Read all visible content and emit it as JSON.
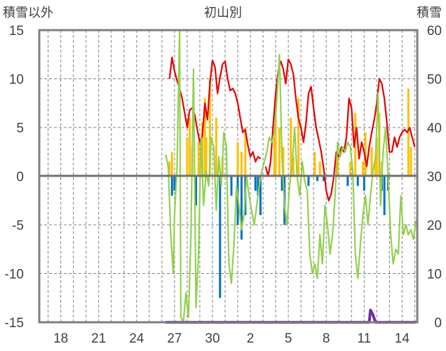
{
  "chart_data": {
    "type": "line",
    "title": "初山別",
    "ylabel_left": "積雪以外",
    "ylabel_right": "積雪",
    "x_ticks": [
      "18",
      "21",
      "24",
      "27",
      "30",
      "2",
      "5",
      "8",
      "11",
      "14"
    ],
    "y_left": {
      "min": -15,
      "max": 15,
      "ticks": [
        15,
        10,
        5,
        0,
        -5,
        -10,
        -15
      ]
    },
    "y_right": {
      "min": 0,
      "max": 60,
      "ticks": [
        60,
        50,
        40,
        30,
        20,
        10,
        0
      ]
    },
    "grid": true,
    "x_range_days": [
      16.3,
      46.2
    ],
    "tick_day_positions": [
      18,
      21,
      24,
      27,
      30,
      33,
      36,
      39,
      42,
      45
    ],
    "series": [
      {
        "role": "temperature",
        "axis": "left",
        "color": "#e60000",
        "points": [
          [
            26.6,
            10.0
          ],
          [
            26.8,
            12.2
          ],
          [
            27.0,
            10.8
          ],
          [
            27.2,
            9.8
          ],
          [
            27.4,
            9.0
          ],
          [
            27.6,
            8.0
          ],
          [
            27.8,
            6.5
          ],
          [
            28.0,
            5.0
          ],
          [
            28.2,
            6.8
          ],
          [
            28.4,
            7.0
          ],
          [
            28.6,
            6.3
          ],
          [
            28.8,
            4.8
          ],
          [
            29.0,
            3.5
          ],
          [
            29.2,
            4.2
          ],
          [
            29.4,
            7.5
          ],
          [
            29.6,
            5.8
          ],
          [
            29.8,
            9.6
          ],
          [
            30.0,
            11.9
          ],
          [
            30.2,
            11.2
          ],
          [
            30.4,
            8.5
          ],
          [
            30.6,
            10.2
          ],
          [
            30.8,
            11.5
          ],
          [
            31.0,
            11.8
          ],
          [
            31.2,
            10.0
          ],
          [
            31.4,
            8.8
          ],
          [
            31.6,
            9.0
          ],
          [
            31.8,
            8.5
          ],
          [
            32.0,
            7.5
          ],
          [
            32.2,
            6.0
          ],
          [
            32.4,
            4.5
          ],
          [
            32.6,
            4.8
          ],
          [
            32.8,
            3.2
          ],
          [
            33.0,
            2.0
          ],
          [
            33.2,
            2.5
          ],
          [
            33.4,
            1.5
          ],
          [
            33.6,
            2.0
          ],
          [
            33.8,
            1.8
          ]
        ]
      },
      {
        "role": "temperature",
        "axis": "left",
        "color": "#e60000",
        "points": [
          [
            34.2,
            1.0
          ],
          [
            34.4,
            0.0
          ],
          [
            34.6,
            1.5
          ],
          [
            34.8,
            5.2
          ],
          [
            35.0,
            8.5
          ],
          [
            35.2,
            10.8
          ],
          [
            35.4,
            11.8
          ],
          [
            35.6,
            11.0
          ],
          [
            35.8,
            9.5
          ],
          [
            36.0,
            12.0
          ],
          [
            36.2,
            11.5
          ],
          [
            36.4,
            10.5
          ],
          [
            36.6,
            8.0
          ],
          [
            36.8,
            6.0
          ],
          [
            37.0,
            5.0
          ],
          [
            37.2,
            3.5
          ],
          [
            37.4,
            5.5
          ],
          [
            37.6,
            8.5
          ],
          [
            37.8,
            9.2
          ],
          [
            38.0,
            7.0
          ],
          [
            38.2,
            5.0
          ],
          [
            38.4,
            3.8
          ],
          [
            38.6,
            2.5
          ],
          [
            38.8,
            0.8
          ],
          [
            39.0,
            -1.5
          ],
          [
            39.2,
            -2.5
          ],
          [
            39.4,
            -1.8
          ],
          [
            39.6,
            0.0
          ],
          [
            39.8,
            2.5
          ],
          [
            40.0,
            2.0
          ],
          [
            40.2,
            3.0
          ],
          [
            40.4,
            2.5
          ],
          [
            40.6,
            4.0
          ],
          [
            40.8,
            8.0
          ],
          [
            41.0,
            7.0
          ],
          [
            41.2,
            3.0
          ],
          [
            41.4,
            5.0
          ],
          [
            41.6,
            1.8
          ],
          [
            41.8,
            3.5
          ],
          [
            42.0,
            2.5
          ],
          [
            42.2,
            1.0
          ],
          [
            42.4,
            3.0
          ],
          [
            42.6,
            4.5
          ],
          [
            42.8,
            5.8
          ],
          [
            43.0,
            7.5
          ],
          [
            43.2,
            10.0
          ],
          [
            43.4,
            9.5
          ],
          [
            43.6,
            8.0
          ],
          [
            43.8,
            5.5
          ],
          [
            44.0,
            2.5
          ],
          [
            44.2,
            2.5
          ],
          [
            44.4,
            4.0
          ],
          [
            44.6,
            3.0
          ],
          [
            44.8,
            4.0
          ],
          [
            45.0,
            4.5
          ],
          [
            45.2,
            4.8
          ],
          [
            45.4,
            4.5
          ],
          [
            45.6,
            5.0
          ],
          [
            45.8,
            4.0
          ],
          [
            46.0,
            3.0
          ]
        ]
      },
      {
        "role": "wind",
        "axis": "left",
        "color": "#92d050",
        "points": [
          [
            26.3,
            2.2
          ],
          [
            26.5,
            1.0
          ],
          [
            26.7,
            -6.0
          ],
          [
            26.9,
            -10.0
          ],
          [
            27.0,
            -4.0
          ],
          [
            27.2,
            1.0
          ],
          [
            27.4,
            15.0
          ],
          [
            27.5,
            -14.5
          ],
          [
            27.7,
            -15.0
          ],
          [
            27.9,
            -12.0
          ],
          [
            28.1,
            -14.5
          ],
          [
            28.3,
            -6.0
          ],
          [
            28.5,
            11.0
          ],
          [
            28.7,
            -13.5
          ],
          [
            28.9,
            -8.0
          ],
          [
            29.1,
            4.0
          ],
          [
            29.3,
            -3.0
          ],
          [
            29.5,
            0.5
          ],
          [
            29.7,
            -1.0
          ],
          [
            29.9,
            4.0
          ],
          [
            30.1,
            3.0
          ],
          [
            30.3,
            -3.5
          ],
          [
            30.5,
            2.0
          ],
          [
            30.7,
            -1.0
          ],
          [
            30.9,
            4.5
          ],
          [
            31.1,
            3.0
          ],
          [
            31.3,
            -9.0
          ],
          [
            31.5,
            -11.0
          ],
          [
            31.7,
            -7.0
          ],
          [
            31.9,
            -1.0
          ],
          [
            32.1,
            -3.0
          ],
          [
            32.3,
            -5.5
          ],
          [
            32.5,
            -4.0
          ],
          [
            32.7,
            0.0
          ],
          [
            32.9,
            -2.0
          ],
          [
            33.1,
            -3.5
          ],
          [
            33.3,
            -5.0
          ],
          [
            33.5,
            -3.0
          ],
          [
            33.7,
            -1.0
          ],
          [
            33.9,
            0.5
          ],
          [
            34.3,
            2.5
          ],
          [
            34.5,
            4.0
          ],
          [
            34.7,
            3.5
          ],
          [
            34.9,
            4.5
          ],
          [
            35.1,
            8.0
          ],
          [
            35.3,
            12.5
          ],
          [
            35.5,
            2.0
          ],
          [
            35.7,
            -3.0
          ],
          [
            35.9,
            -5.0
          ],
          [
            36.1,
            -1.0
          ],
          [
            36.3,
            1.0
          ],
          [
            36.5,
            5.0
          ],
          [
            36.7,
            0.0
          ],
          [
            36.9,
            -2.0
          ],
          [
            37.1,
            1.5
          ],
          [
            37.3,
            -0.5
          ],
          [
            37.5,
            -1.5
          ],
          [
            37.7,
            -8.0
          ],
          [
            37.9,
            -10.0
          ],
          [
            38.1,
            -9.0
          ],
          [
            38.3,
            -10.5
          ],
          [
            38.5,
            -6.0
          ],
          [
            38.7,
            -9.0
          ],
          [
            38.9,
            -3.0
          ],
          [
            39.1,
            -5.0
          ],
          [
            39.3,
            -8.0
          ],
          [
            39.5,
            -6.0
          ],
          [
            39.7,
            -2.0
          ],
          [
            39.9,
            3.5
          ],
          [
            40.1,
            2.0
          ],
          [
            40.3,
            3.0
          ],
          [
            40.5,
            2.5
          ],
          [
            40.7,
            3.5
          ],
          [
            40.9,
            3.0
          ],
          [
            41.1,
            0.5
          ],
          [
            41.3,
            -8.0
          ],
          [
            41.5,
            -10.5
          ],
          [
            41.7,
            -7.0
          ],
          [
            41.9,
            -4.0
          ],
          [
            42.1,
            -2.0
          ],
          [
            42.3,
            -5.0
          ],
          [
            42.5,
            -2.0
          ],
          [
            42.7,
            0.5
          ],
          [
            42.9,
            2.0
          ],
          [
            43.1,
            8.5
          ],
          [
            43.3,
            -3.0
          ],
          [
            43.5,
            2.5
          ],
          [
            43.7,
            5.0
          ],
          [
            43.9,
            0.0
          ],
          [
            44.1,
            -6.0
          ],
          [
            44.3,
            -9.0
          ],
          [
            44.5,
            -7.5
          ],
          [
            44.7,
            -8.0
          ],
          [
            44.9,
            -2.0
          ],
          [
            45.1,
            -6.0
          ],
          [
            45.3,
            -5.0
          ],
          [
            45.5,
            -6.0
          ],
          [
            45.7,
            -5.5
          ],
          [
            45.9,
            -6.5
          ],
          [
            46.1,
            -4.5
          ]
        ]
      },
      {
        "role": "snow_depth",
        "axis": "right",
        "color": "#7030a0",
        "points": [
          [
            26.3,
            0.0
          ],
          [
            42.4,
            0.0
          ],
          [
            42.5,
            2.5
          ],
          [
            42.7,
            1.5
          ],
          [
            42.9,
            0.0
          ],
          [
            46.1,
            0.0
          ]
        ]
      }
    ],
    "bars": [
      {
        "role": "precipitation",
        "axis": "left",
        "color": "#ffc000",
        "values": [
          [
            26.6,
            1.5
          ],
          [
            26.8,
            2.5
          ],
          [
            28.0,
            4.0
          ],
          [
            28.2,
            6.0
          ],
          [
            28.4,
            3.0
          ],
          [
            28.9,
            3.5
          ],
          [
            29.2,
            5.5
          ],
          [
            29.4,
            8.0
          ],
          [
            29.5,
            4.0
          ],
          [
            29.8,
            10.0
          ],
          [
            30.3,
            6.0
          ],
          [
            30.8,
            2.0
          ],
          [
            32.0,
            3.5
          ],
          [
            32.3,
            2.5
          ],
          [
            32.6,
            5.0
          ],
          [
            34.9,
            4.0
          ],
          [
            35.0,
            8.0
          ],
          [
            35.3,
            5.0
          ],
          [
            35.6,
            3.0
          ],
          [
            36.2,
            6.0
          ],
          [
            36.4,
            2.0
          ],
          [
            36.8,
            8.0
          ],
          [
            38.1,
            2.5
          ],
          [
            38.5,
            1.5
          ],
          [
            39.9,
            2.5
          ],
          [
            40.9,
            1.5
          ],
          [
            41.3,
            6.5
          ],
          [
            41.9,
            1.5
          ],
          [
            42.1,
            4.5
          ],
          [
            42.6,
            3.0
          ],
          [
            42.9,
            2.0
          ],
          [
            43.0,
            4.0
          ],
          [
            43.2,
            6.5
          ],
          [
            43.4,
            1.5
          ],
          [
            45.5,
            9.0
          ],
          [
            45.7,
            3.0
          ]
        ]
      },
      {
        "role": "sunshine",
        "axis": "left",
        "color": "#0070c0",
        "values": [
          [
            26.8,
            -2.0
          ],
          [
            27.0,
            -1.5
          ],
          [
            28.7,
            -3.0
          ],
          [
            30.6,
            -12.5
          ],
          [
            31.5,
            -2.0
          ],
          [
            32.0,
            -5.0
          ],
          [
            32.3,
            -6.5
          ],
          [
            32.6,
            -4.0
          ],
          [
            33.4,
            -1.5
          ],
          [
            33.6,
            -2.0
          ],
          [
            33.8,
            -4.0
          ],
          [
            35.5,
            -1.5
          ],
          [
            35.7,
            -5.0
          ],
          [
            37.6,
            -1.0
          ],
          [
            38.3,
            -0.5
          ],
          [
            38.8,
            -0.5
          ],
          [
            40.7,
            -1.0
          ],
          [
            41.5,
            -1.0
          ],
          [
            42.0,
            -1.5
          ],
          [
            43.4,
            -1.5
          ],
          [
            43.6,
            -4.0
          ],
          [
            43.9,
            -1.5
          ]
        ]
      }
    ]
  }
}
